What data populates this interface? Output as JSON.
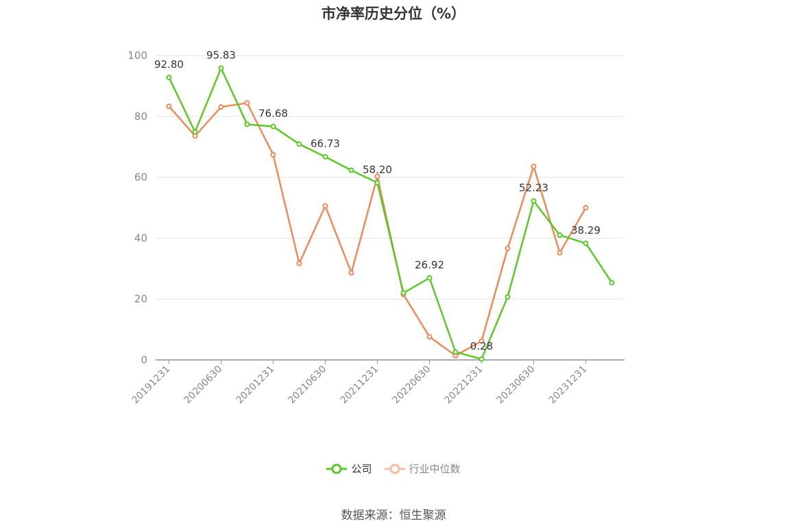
{
  "chart_data": {
    "type": "line",
    "title": "市净率历史分位（%）",
    "xlabel": "",
    "ylabel": "",
    "ylim": [
      0,
      100
    ],
    "yticks": [
      0,
      20,
      40,
      60,
      80,
      100
    ],
    "categories": [
      "20191231",
      "20200331",
      "20200630",
      "20200930",
      "20201231",
      "20210331",
      "20210630",
      "20210930",
      "20211231",
      "20220331",
      "20220630",
      "20220930",
      "20221231",
      "20230331",
      "20230630",
      "20230930",
      "20231231",
      "20240331"
    ],
    "xtick_labels": [
      "20191231",
      "20200630",
      "20201231",
      "20210630",
      "20211231",
      "20220630",
      "20221231",
      "20230630",
      "20231231"
    ],
    "series": [
      {
        "name": "公司",
        "color": "#5cc826",
        "values": [
          92.8,
          74.9,
          95.83,
          77.4,
          76.68,
          70.9,
          66.73,
          62.3,
          58.2,
          22.0,
          26.92,
          2.6,
          0.28,
          20.7,
          52.23,
          41.0,
          38.29,
          25.4
        ],
        "labels": {
          "0": "92.80",
          "2": "95.83",
          "4": "76.68",
          "6": "66.73",
          "8": "58.20",
          "10": "26.92",
          "12": "0.28",
          "14": "52.23",
          "16": "38.29"
        }
      },
      {
        "name": "行业中位数",
        "color": "#f0895a",
        "values": [
          83.3,
          73.6,
          83.1,
          84.4,
          67.4,
          31.7,
          50.6,
          28.6,
          60.3,
          21.5,
          7.6,
          1.4,
          6.2,
          36.6,
          63.6,
          35.2,
          50.0,
          null
        ]
      }
    ],
    "legend_position": "bottom-center",
    "grid": true
  },
  "legend": {
    "company": "公司",
    "industry": "行业中位数"
  },
  "source": "数据来源：恒生聚源"
}
